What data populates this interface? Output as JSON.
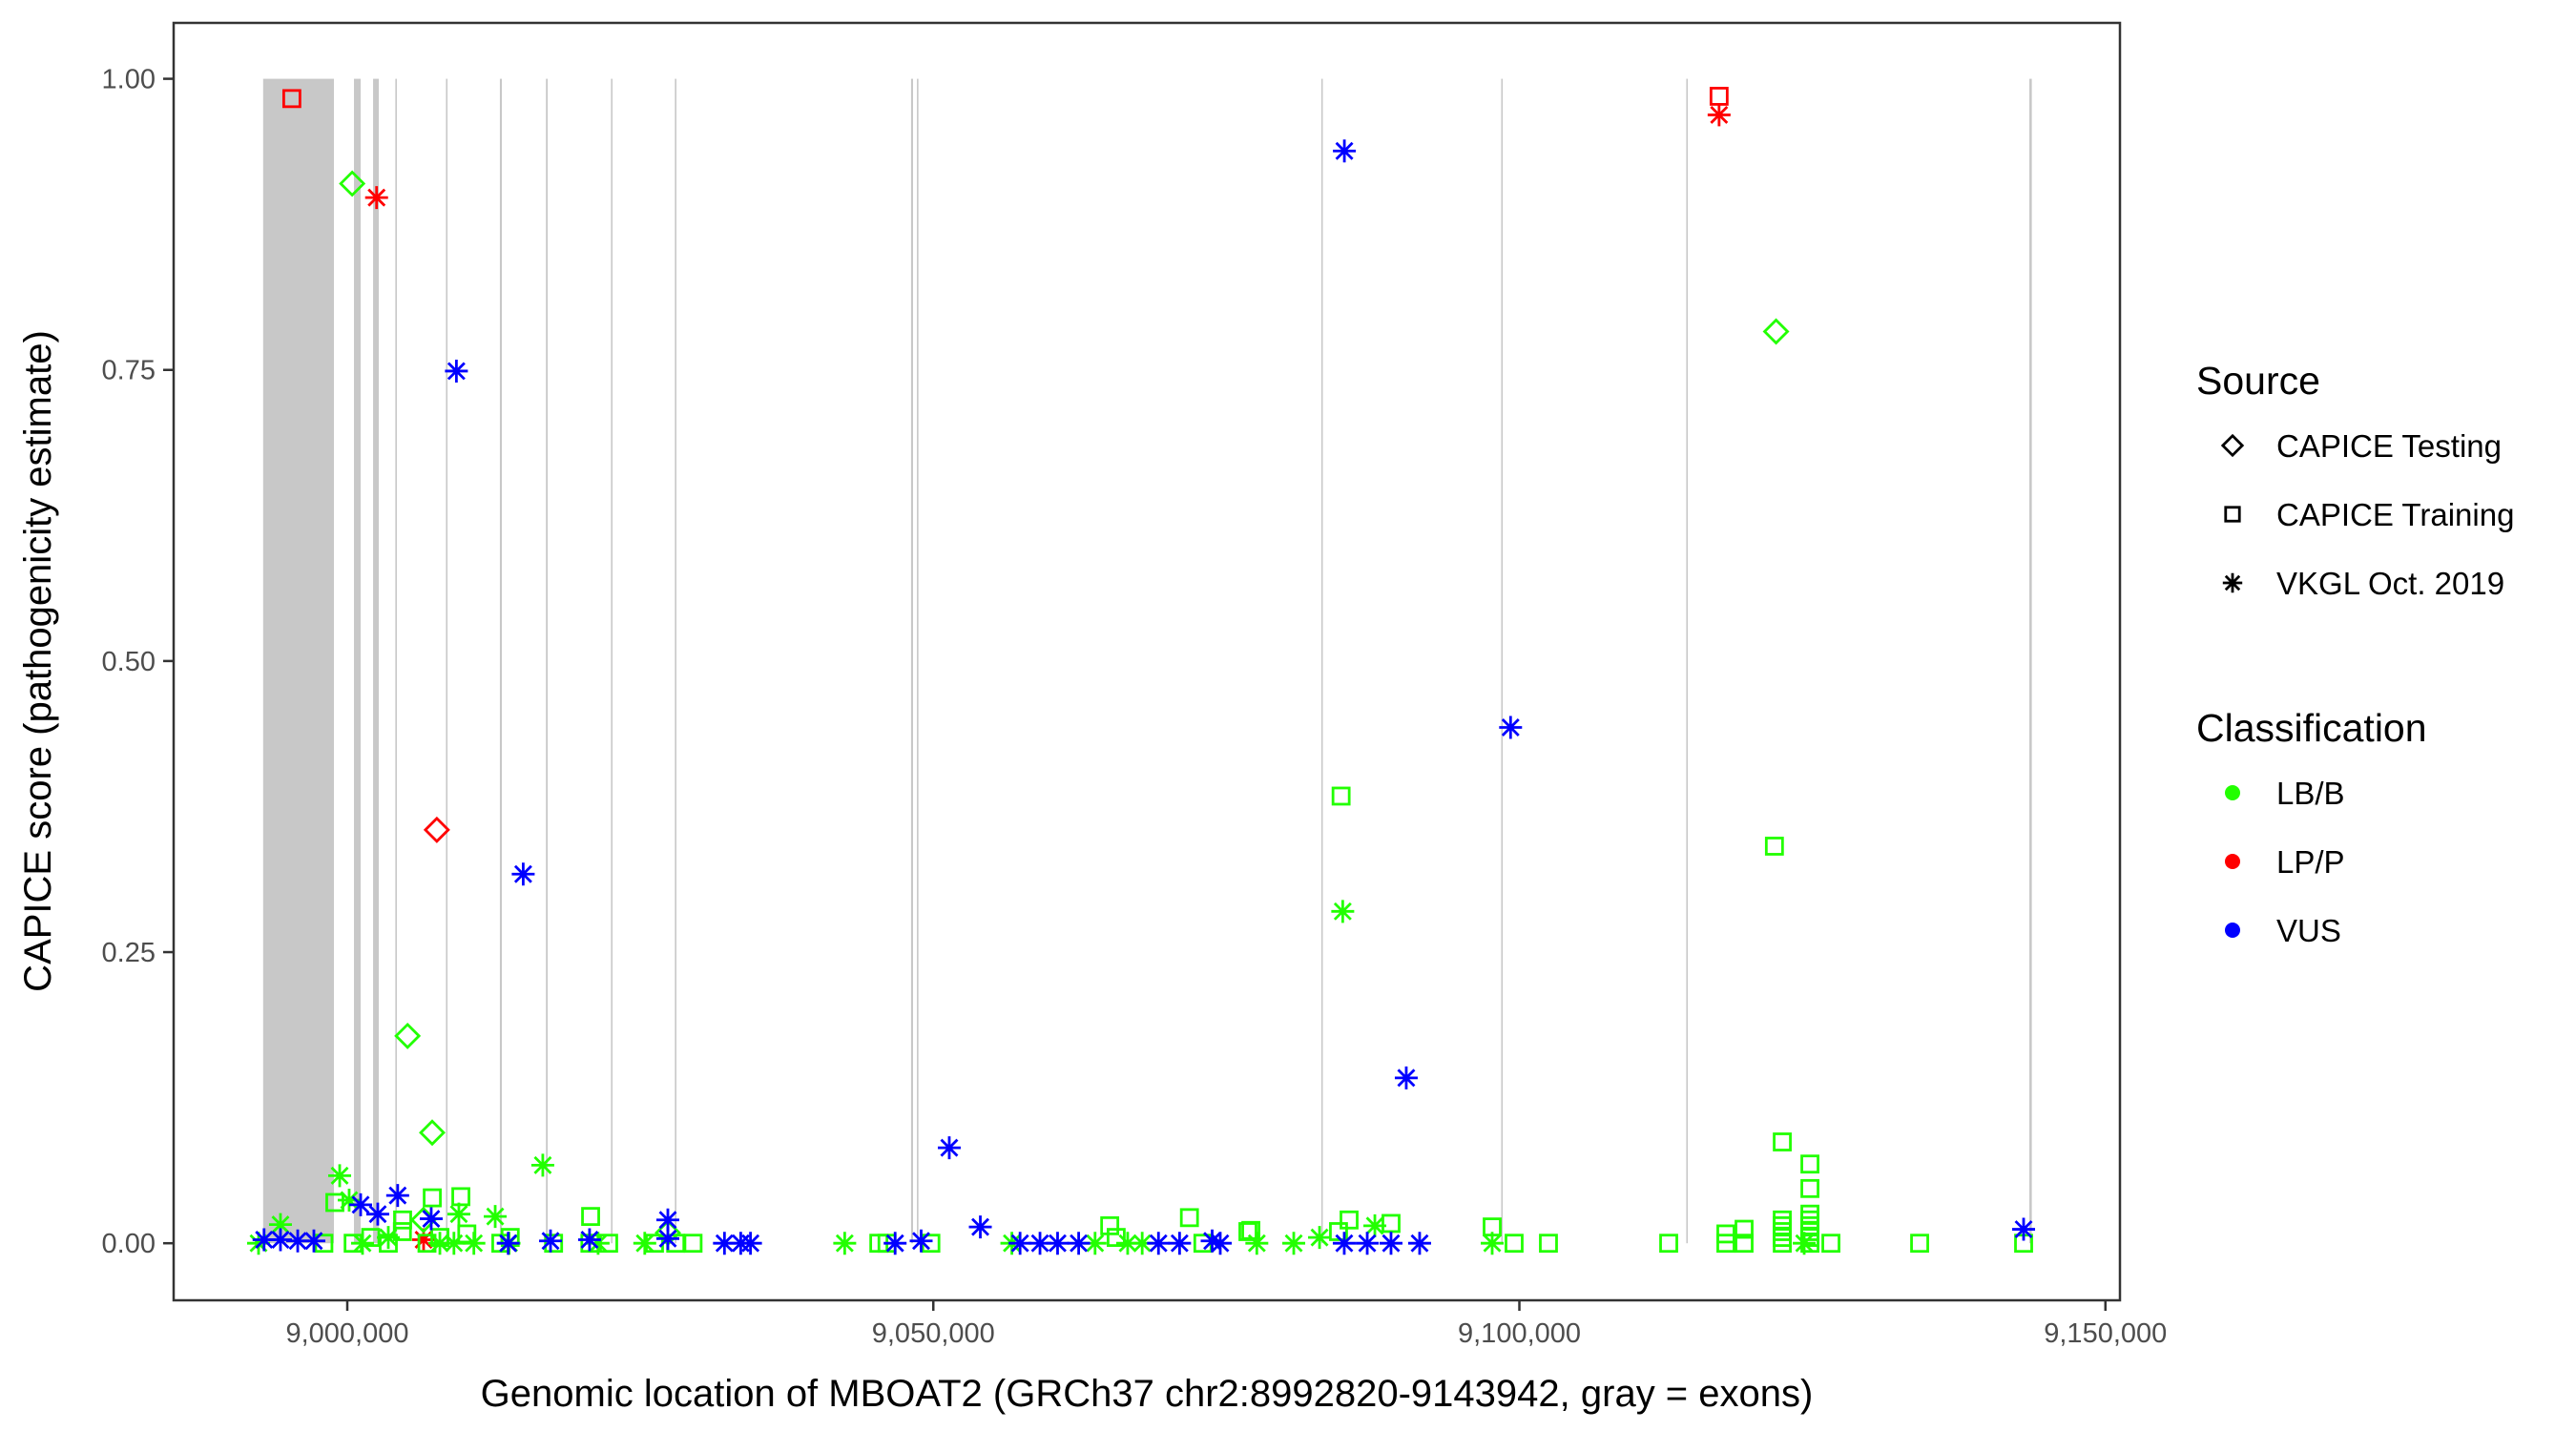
{
  "chart_data": {
    "type": "scatter",
    "xlabel": "Genomic location of MBOAT2 (GRCh37 chr2:8992820-9143942, gray = exons)",
    "ylabel": "CAPICE score (pathogenicity estimate)",
    "xlim": [
      8985185,
      9151240
    ],
    "ylim": [
      -0.049,
      1.048
    ],
    "x_ticks": [
      9000000,
      9050000,
      9100000,
      9150000
    ],
    "x_tick_labels": [
      "9,000,000",
      "9,050,000",
      "9,100,000",
      "9,150,000"
    ],
    "y_ticks": [
      0,
      0.25,
      0.5,
      0.75,
      1.0
    ],
    "y_tick_labels": [
      "0.00",
      "0.25",
      "0.50",
      "0.75",
      "1.00"
    ],
    "grid": false,
    "legend_placement": "right",
    "exons": [
      [
        8992820,
        8998860
      ],
      [
        9000570,
        9001140
      ],
      [
        9002200,
        9002690
      ],
      [
        9004100,
        9004200
      ],
      [
        9008420,
        9008520
      ],
      [
        9013020,
        9013190
      ],
      [
        9016950,
        9017100
      ],
      [
        9022500,
        9022600
      ],
      [
        9027950,
        9028050
      ],
      [
        9048100,
        9048270
      ],
      [
        9048600,
        9048700
      ],
      [
        9083100,
        9083200
      ],
      [
        9098450,
        9098550
      ],
      [
        9114240,
        9114340
      ],
      [
        9143510,
        9143720
      ]
    ],
    "exon_color": "#c8c8c8",
    "legend": {
      "source": {
        "title": "Source",
        "items": [
          {
            "label": "CAPICE Testing",
            "shape": "diamond"
          },
          {
            "label": "CAPICE Training",
            "shape": "square"
          },
          {
            "label": "VKGL Oct. 2019",
            "shape": "asterisk"
          }
        ]
      },
      "classification": {
        "title": "Classification",
        "items": [
          {
            "label": "LB/B",
            "color": "#22ff00"
          },
          {
            "label": "LP/P",
            "color": "#ff0000"
          },
          {
            "label": "VUS",
            "color": "#0000ff"
          }
        ]
      }
    },
    "point_fields": [
      "position",
      "score",
      "source_index",
      "classification_index"
    ],
    "points": [
      [
        8995270,
        0.983,
        1,
        1
      ],
      [
        9002500,
        0.898,
        2,
        1
      ],
      [
        9007640,
        0.355,
        0,
        1
      ],
      [
        9117040,
        0.985,
        1,
        1
      ],
      [
        9117040,
        0.969,
        2,
        1
      ],
      [
        9006510,
        0.003,
        2,
        1
      ],
      [
        9000420,
        0.91,
        0,
        0
      ],
      [
        9005140,
        0.178,
        0,
        0
      ],
      [
        9007245,
        0.095,
        0,
        0
      ],
      [
        9006500,
        0.02,
        0,
        0
      ],
      [
        9027350,
        0.009,
        0,
        0
      ],
      [
        9121900,
        0.783,
        0,
        0
      ],
      [
        9084790,
        0.384,
        1,
        0
      ],
      [
        9121760,
        0.341,
        1,
        0
      ],
      [
        9084930,
        0.285,
        2,
        0
      ],
      [
        9122430,
        0.087,
        1,
        0
      ],
      [
        9124790,
        0.068,
        1,
        0
      ],
      [
        9124790,
        0.047,
        1,
        0
      ],
      [
        9122430,
        0.02,
        1,
        0
      ],
      [
        9122430,
        0.015,
        1,
        0
      ],
      [
        9122430,
        0.01,
        1,
        0
      ],
      [
        9122430,
        0.005,
        1,
        0
      ],
      [
        9122430,
        0.0,
        1,
        0
      ],
      [
        9124790,
        0.025,
        1,
        0
      ],
      [
        9124790,
        0.02,
        1,
        0
      ],
      [
        9124790,
        0.015,
        1,
        0
      ],
      [
        9124790,
        0.01,
        1,
        0
      ],
      [
        9124790,
        0.005,
        1,
        0
      ],
      [
        9124790,
        0.0,
        1,
        0
      ],
      [
        8994300,
        0.016,
        2,
        0
      ],
      [
        8992430,
        0.0,
        2,
        0
      ],
      [
        8999350,
        0.058,
        2,
        0
      ],
      [
        8998940,
        0.035,
        1,
        0
      ],
      [
        9000160,
        0.037,
        2,
        0
      ],
      [
        9007250,
        0.039,
        1,
        0
      ],
      [
        9009690,
        0.04,
        1,
        0
      ],
      [
        9004720,
        0.02,
        1,
        0
      ],
      [
        9009520,
        0.025,
        2,
        0
      ],
      [
        9012620,
        0.023,
        2,
        0
      ],
      [
        9016680,
        0.067,
        2,
        0
      ],
      [
        9020760,
        0.023,
        1,
        0
      ],
      [
        8998000,
        0.0,
        1,
        0
      ],
      [
        9000500,
        0.0,
        1,
        0
      ],
      [
        9002000,
        0.005,
        1,
        0
      ],
      [
        9003500,
        0.0,
        1,
        0
      ],
      [
        9004700,
        0.01,
        1,
        0
      ],
      [
        9006800,
        0.0,
        1,
        0
      ],
      [
        9007900,
        0.005,
        1,
        0
      ],
      [
        9010200,
        0.008,
        1,
        0
      ],
      [
        9013100,
        0.0,
        1,
        0
      ],
      [
        9013900,
        0.005,
        1,
        0
      ],
      [
        9017600,
        0.0,
        1,
        0
      ],
      [
        9020700,
        0.0,
        1,
        0
      ],
      [
        9022300,
        0.0,
        1,
        0
      ],
      [
        9029500,
        0.0,
        1,
        0
      ],
      [
        9001300,
        0.0,
        2,
        0
      ],
      [
        9003500,
        0.005,
        2,
        0
      ],
      [
        9007900,
        0.0,
        2,
        0
      ],
      [
        9009100,
        0.0,
        2,
        0
      ],
      [
        9010800,
        0.0,
        2,
        0
      ],
      [
        9013800,
        0.0,
        2,
        0
      ],
      [
        9021400,
        0.0,
        2,
        0
      ],
      [
        9025380,
        0.0,
        2,
        0
      ],
      [
        9026210,
        0.0,
        1,
        0
      ],
      [
        9028020,
        0.0,
        1,
        0
      ],
      [
        9042440,
        0.0,
        2,
        0
      ],
      [
        9045350,
        0.0,
        1,
        0
      ],
      [
        9046050,
        0.0,
        1,
        0
      ],
      [
        9049790,
        0.0,
        1,
        0
      ],
      [
        9056700,
        0.0,
        2,
        0
      ],
      [
        9063800,
        0.0,
        2,
        0
      ],
      [
        9065050,
        0.015,
        1,
        0
      ],
      [
        9065600,
        0.005,
        1,
        0
      ],
      [
        9066580,
        0.0,
        2,
        0
      ],
      [
        9067820,
        0.0,
        2,
        0
      ],
      [
        9071850,
        0.022,
        1,
        0
      ],
      [
        9073000,
        0.0,
        1,
        0
      ],
      [
        9076840,
        0.01,
        1,
        0
      ],
      [
        9077090,
        0.011,
        1,
        0
      ],
      [
        9077600,
        0.0,
        2,
        0
      ],
      [
        9080750,
        0.0,
        2,
        0
      ],
      [
        9082950,
        0.005,
        2,
        0
      ],
      [
        9084570,
        0.01,
        1,
        0
      ],
      [
        9085470,
        0.02,
        1,
        0
      ],
      [
        9087670,
        0.015,
        2,
        0
      ],
      [
        9089050,
        0.017,
        1,
        0
      ],
      [
        9097680,
        0.014,
        1,
        0
      ],
      [
        9097680,
        0.0,
        2,
        0
      ],
      [
        9099550,
        0.0,
        1,
        0
      ],
      [
        9102480,
        0.0,
        1,
        0
      ],
      [
        9112740,
        0.0,
        1,
        0
      ],
      [
        9117620,
        0.008,
        1,
        0
      ],
      [
        9117620,
        0.0,
        1,
        0
      ],
      [
        9119170,
        0.012,
        1,
        0
      ],
      [
        9119170,
        0.0,
        1,
        0
      ],
      [
        9124300,
        0.0,
        2,
        0
      ],
      [
        9126580,
        0.0,
        1,
        0
      ],
      [
        9134150,
        0.0,
        1,
        0
      ],
      [
        9143020,
        0.0,
        1,
        0
      ],
      [
        9009310,
        0.749,
        2,
        2
      ],
      [
        9015010,
        0.317,
        2,
        2
      ],
      [
        9085070,
        0.938,
        2,
        2
      ],
      [
        9099250,
        0.443,
        2,
        2
      ],
      [
        9090350,
        0.142,
        2,
        2
      ],
      [
        9051360,
        0.082,
        2,
        2
      ],
      [
        9054010,
        0.014,
        2,
        2
      ],
      [
        9143020,
        0.012,
        2,
        2
      ],
      [
        9001140,
        0.033,
        2,
        2
      ],
      [
        9002600,
        0.025,
        2,
        2
      ],
      [
        9004300,
        0.041,
        2,
        2
      ],
      [
        9007160,
        0.021,
        2,
        2
      ],
      [
        9027350,
        0.02,
        2,
        2
      ],
      [
        9027350,
        0.004,
        2,
        2
      ],
      [
        8992900,
        0.003,
        2,
        2
      ],
      [
        8994300,
        0.003,
        2,
        2
      ],
      [
        8995770,
        0.002,
        2,
        2
      ],
      [
        8997150,
        0.002,
        2,
        2
      ],
      [
        9013730,
        0.0,
        2,
        2
      ],
      [
        9017340,
        0.002,
        2,
        2
      ],
      [
        9020670,
        0.003,
        2,
        2
      ],
      [
        9032180,
        0.0,
        2,
        2
      ],
      [
        9033570,
        0.0,
        2,
        2
      ],
      [
        9034400,
        0.0,
        2,
        2
      ],
      [
        9046740,
        0.0,
        2,
        2
      ],
      [
        9048960,
        0.002,
        2,
        2
      ],
      [
        9057400,
        0.0,
        2,
        2
      ],
      [
        9059100,
        0.0,
        2,
        2
      ],
      [
        9060600,
        0.0,
        2,
        2
      ],
      [
        9062400,
        0.0,
        2,
        2
      ],
      [
        9069210,
        0.0,
        2,
        2
      ],
      [
        9071010,
        0.0,
        2,
        2
      ],
      [
        9073790,
        0.002,
        2,
        2
      ],
      [
        9074480,
        0.0,
        2,
        2
      ],
      [
        9085060,
        0.0,
        2,
        2
      ],
      [
        9087020,
        0.0,
        2,
        2
      ],
      [
        9089050,
        0.0,
        2,
        2
      ],
      [
        9091490,
        0.0,
        2,
        2
      ]
    ]
  }
}
